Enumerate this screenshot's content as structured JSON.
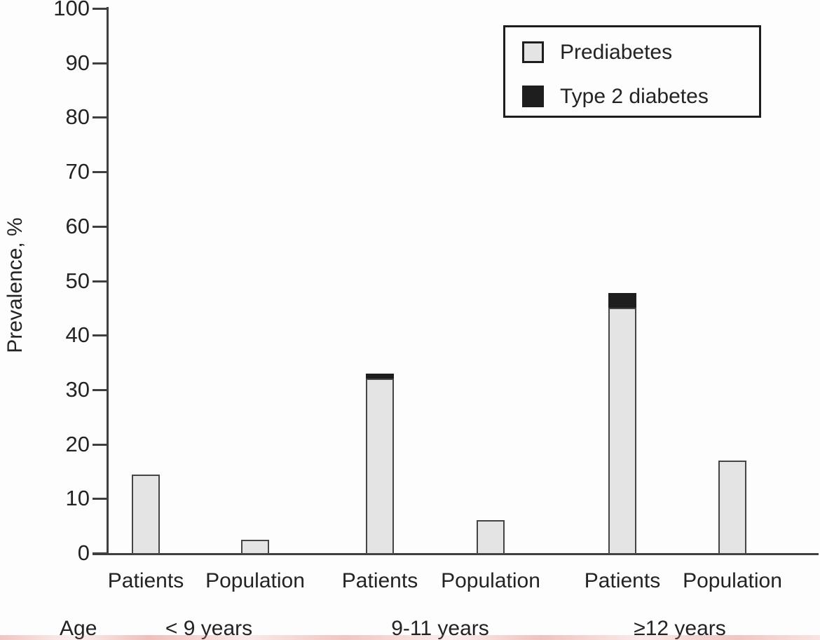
{
  "chart_data": {
    "type": "bar",
    "stacked": true,
    "title": "",
    "ylabel": "Prevalence, %",
    "ylim": [
      0,
      100
    ],
    "ytick_step": 10,
    "grid": false,
    "legend_position": "top-right",
    "age_row_label": "Age",
    "age_groups": [
      "< 9 years",
      "9-11 years",
      "≥12 years"
    ],
    "categories": [
      "Patients",
      "Population",
      "Patients",
      "Population",
      "Patients",
      "Population"
    ],
    "series": [
      {
        "name": "Prediabetes",
        "color": "#e4e4e4",
        "values": [
          14.4,
          2.4,
          32.0,
          6.0,
          45.0,
          17.0
        ]
      },
      {
        "name": "Type 2 diabetes",
        "color": "#1e1e1e",
        "values": [
          0,
          0,
          1.0,
          0,
          2.7,
          0
        ]
      }
    ]
  }
}
